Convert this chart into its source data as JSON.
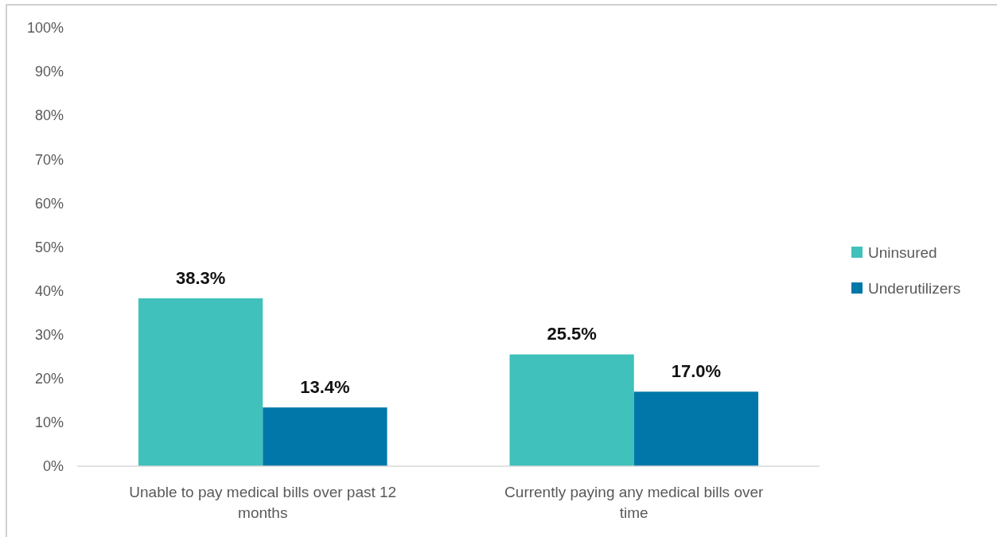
{
  "chart_data": {
    "type": "bar",
    "categories": [
      "Unable to pay medical bills over past 12 months",
      "Currently paying any medical bills over time"
    ],
    "series": [
      {
        "name": "Uninsured",
        "color": "#40c1bb",
        "values": [
          38.3,
          25.5
        ]
      },
      {
        "name": "Underutilizers",
        "color": "#0077a8",
        "values": [
          13.4,
          17.0
        ]
      }
    ],
    "value_labels": [
      [
        "38.3%",
        "25.5%"
      ],
      [
        "13.4%",
        "17.0%"
      ]
    ],
    "ylim": [
      0,
      100
    ],
    "yticks": [
      {
        "value": 0,
        "label": "0%"
      },
      {
        "value": 10,
        "label": "10%"
      },
      {
        "value": 20,
        "label": "20%"
      },
      {
        "value": 30,
        "label": "30%"
      },
      {
        "value": 40,
        "label": "40%"
      },
      {
        "value": 50,
        "label": "50%"
      },
      {
        "value": 60,
        "label": "60%"
      },
      {
        "value": 70,
        "label": "70%"
      },
      {
        "value": 80,
        "label": "80%"
      },
      {
        "value": 90,
        "label": "90%"
      },
      {
        "value": 100,
        "label": "100%"
      }
    ],
    "grid": false,
    "legend": "right"
  }
}
